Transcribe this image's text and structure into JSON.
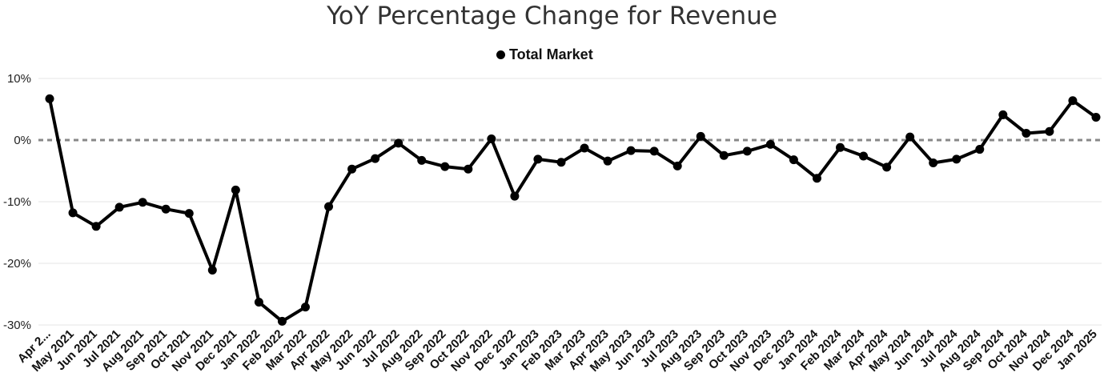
{
  "chart_data": {
    "type": "line",
    "title": "YoY Percentage Change for Revenue",
    "xlabel": "",
    "ylabel": "",
    "ylim": [
      -30,
      10
    ],
    "y_ticks": [
      "10%",
      "0%",
      "-10%",
      "-20%",
      "-30%"
    ],
    "y_tick_values": [
      10,
      0,
      -10,
      -20,
      -30
    ],
    "grid": true,
    "zero_line": "dashed",
    "legend_position": "top-center",
    "line_color": "#000000",
    "categories": [
      "Apr 2...",
      "May 2021",
      "Jun 2021",
      "Jul 2021",
      "Aug 2021",
      "Sep 2021",
      "Oct 2021",
      "Nov 2021",
      "Dec 2021",
      "Jan 2022",
      "Feb 2022",
      "Mar 2022",
      "Apr 2022",
      "May 2022",
      "Jun 2022",
      "Jul 2022",
      "Aug 2022",
      "Sep 2022",
      "Oct 2022",
      "Nov 2022",
      "Dec 2022",
      "Jan 2023",
      "Feb 2023",
      "Mar 2023",
      "Apr 2023",
      "May 2023",
      "Jun 2023",
      "Jul 2023",
      "Aug 2023",
      "Sep 2023",
      "Oct 2023",
      "Nov 2023",
      "Dec 2023",
      "Jan 2024",
      "Feb 2024",
      "Mar 2024",
      "Apr 2024",
      "May 2024",
      "Jun 2024",
      "Jul 2024",
      "Aug 2024",
      "Sep 2024",
      "Oct 2024",
      "Nov 2024",
      "Dec 2024",
      "Jan 2025"
    ],
    "series": [
      {
        "name": "Total Market",
        "values": [
          6.7,
          -11.8,
          -14.0,
          -10.9,
          -10.1,
          -11.2,
          -11.9,
          -21.1,
          -8.1,
          -26.3,
          -29.4,
          -27.1,
          -10.8,
          -4.7,
          -3.0,
          -0.5,
          -3.3,
          -4.3,
          -4.7,
          0.2,
          -9.1,
          -3.1,
          -3.6,
          -1.3,
          -3.4,
          -1.7,
          -1.8,
          -4.2,
          0.6,
          -2.5,
          -1.8,
          -0.7,
          -3.2,
          -6.2,
          -1.2,
          -2.6,
          -4.4,
          0.5,
          -3.7,
          -3.1,
          -1.5,
          4.1,
          1.1,
          1.4,
          6.4,
          3.7
        ]
      }
    ]
  }
}
